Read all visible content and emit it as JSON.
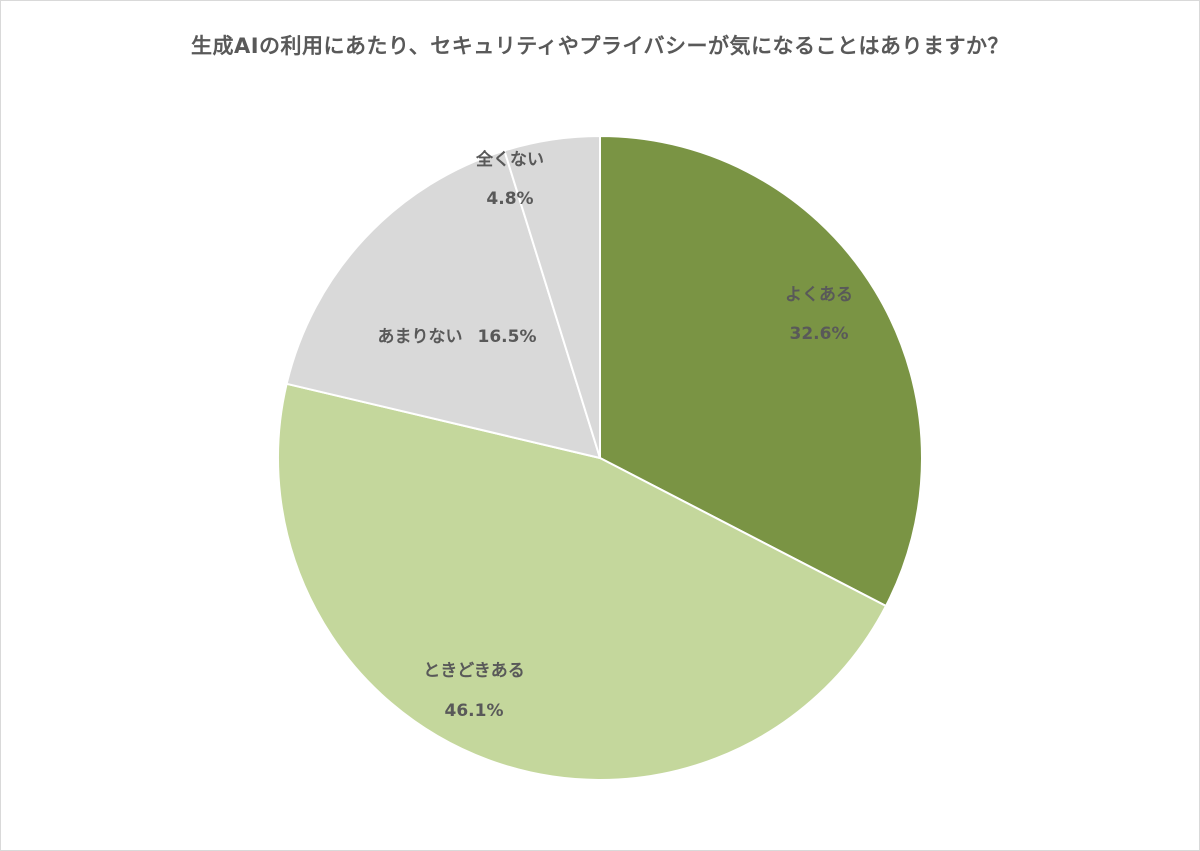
{
  "title": "生成AIの利用にあたり、セキュリティやプライバシーが気になることはありますか？",
  "chart_data": {
    "type": "pie",
    "title": "生成AIの利用にあたり、セキュリティやプライバシーが気になることはありますか？",
    "categories": [
      "よくある",
      "ときどきある",
      "あまりない",
      "全くない"
    ],
    "values": [
      32.6,
      46.1,
      16.5,
      4.8
    ],
    "unit": "%",
    "colors": [
      "#7a9444",
      "#c4d79c",
      "#d9d9d9",
      "#d9d9d9"
    ],
    "start_angle": "12 o'clock",
    "direction": "clockwise",
    "legend": "none",
    "data_labels": [
      {
        "name": "よくある",
        "value": "32.6%"
      },
      {
        "name": "ときどきある",
        "value": "46.1%"
      },
      {
        "name": "あまりない",
        "value": "16.5%"
      },
      {
        "name": "全くない",
        "value": "4.8%"
      }
    ]
  }
}
